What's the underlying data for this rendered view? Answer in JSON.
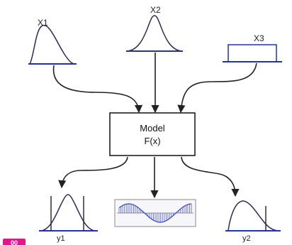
{
  "inputs": {
    "x1_label": "X1",
    "x2_label": "X2",
    "x3_label": "X3"
  },
  "model": {
    "line1": "Model",
    "line2": "F(x)"
  },
  "outputs": {
    "y1_label": "y1",
    "y2_label": "y2"
  },
  "badge": {
    "text": "00"
  },
  "colors": {
    "curve_stroke": "#2b2b5a",
    "curve_base": "#2233aa",
    "arrow": "#222222",
    "oscillation": "#3344cc",
    "badge": "#e0168d"
  }
}
